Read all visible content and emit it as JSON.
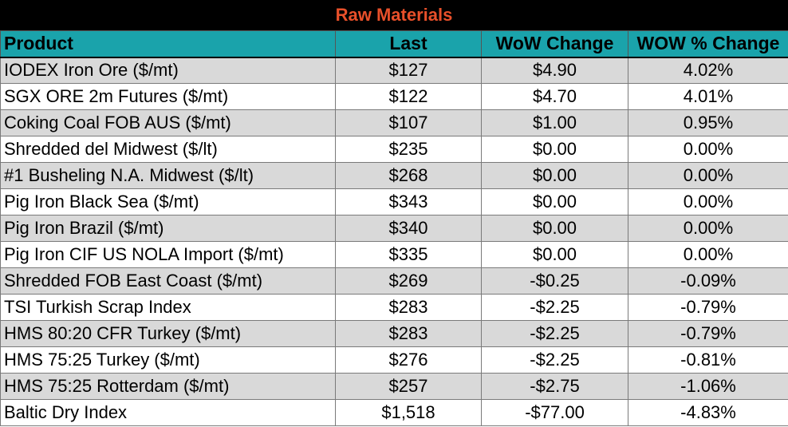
{
  "title": "Raw Materials",
  "colors": {
    "title_background": "#000000",
    "title_text": "#e8502a",
    "header_background": "#1aa3ab",
    "shaded_row": "#d9d9d9",
    "plain_row": "#ffffff"
  },
  "columns": [
    "Product",
    "Last",
    "WoW Change",
    "WOW % Change"
  ],
  "rows": [
    {
      "product": "IODEX  Iron Ore ($/mt)",
      "last": "$127",
      "wow": "$4.90",
      "pct": "4.02%"
    },
    {
      "product": "SGX ORE 2m Futures ($/mt)",
      "last": "$122",
      "wow": "$4.70",
      "pct": "4.01%"
    },
    {
      "product": "Coking Coal FOB AUS ($/mt)",
      "last": "$107",
      "wow": "$1.00",
      "pct": "0.95%"
    },
    {
      "product": "Shredded del  Midwest ($/lt)",
      "last": "$235",
      "wow": "$0.00",
      "pct": "0.00%"
    },
    {
      "product": "#1 Busheling N.A. Midwest ($/lt)",
      "last": "$268",
      "wow": "$0.00",
      "pct": "0.00%"
    },
    {
      "product": "Pig Iron Black Sea ($/mt)",
      "last": "$343",
      "wow": "$0.00",
      "pct": "0.00%"
    },
    {
      "product": "Pig Iron Brazil ($/mt)",
      "last": "$340",
      "wow": "$0.00",
      "pct": "0.00%"
    },
    {
      "product": "Pig Iron CIF US NOLA Import ($/mt)",
      "last": "$335",
      "wow": "$0.00",
      "pct": "0.00%"
    },
    {
      "product": "Shredded FOB East Coast ($/mt)",
      "last": "$269",
      "wow": "-$0.25",
      "pct": "-0.09%"
    },
    {
      "product": "TSI Turkish Scrap Index",
      "last": "$283",
      "wow": "-$2.25",
      "pct": "-0.79%"
    },
    {
      "product": "HMS 80:20 CFR Turkey ($/mt)",
      "last": "$283",
      "wow": "-$2.25",
      "pct": "-0.79%"
    },
    {
      "product": "HMS 75:25 Turkey ($/mt)",
      "last": "$276",
      "wow": "-$2.25",
      "pct": "-0.81%"
    },
    {
      "product": "HMS 75:25 Rotterdam ($/mt)",
      "last": "$257",
      "wow": "-$2.75",
      "pct": "-1.06%"
    },
    {
      "product": "Baltic Dry Index",
      "last": "$1,518",
      "wow": "-$77.00",
      "pct": "-4.83%"
    }
  ]
}
